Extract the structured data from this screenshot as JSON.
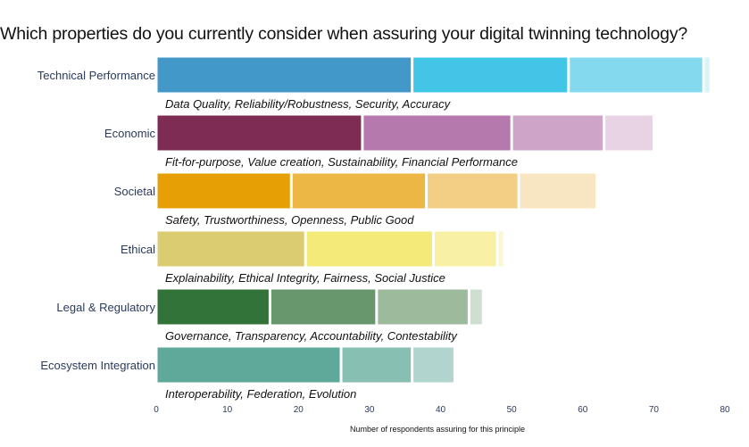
{
  "chart_data": {
    "type": "bar",
    "orientation": "horizontal",
    "stacked": true,
    "title": "Which properties do you currently consider when assuring your digital twinning technology?",
    "xlabel": "Number of respondents assuring for this principle",
    "ylabel": "",
    "xlim": [
      0,
      80
    ],
    "xticks": [
      0,
      10,
      20,
      30,
      40,
      50,
      60,
      70,
      80
    ],
    "grid": false,
    "categories": [
      {
        "label": "Technical Performance",
        "subtitle": "Data Quality, Reliability/Robustness, Security, Accuracy",
        "values": [
          36,
          22,
          19,
          1
        ],
        "colors": [
          "#4298c9",
          "#42c5e6",
          "#84d9ef",
          "#d9f3fa"
        ]
      },
      {
        "label": "Economic",
        "subtitle": "Fit-for-purpose, Value creation, Sustainability, Financial Performance",
        "values": [
          29,
          21,
          13,
          7
        ],
        "colors": [
          "#7f2c55",
          "#b679ae",
          "#cfa4c9",
          "#e8d3e5"
        ]
      },
      {
        "label": "Societal",
        "subtitle": "Safety, Trustworthiness, Openness, Public Good",
        "values": [
          19,
          19,
          13,
          11
        ],
        "colors": [
          "#e6a005",
          "#ecb744",
          "#f2cf85",
          "#f8e6c2"
        ]
      },
      {
        "label": "Ethical",
        "subtitle": "Explainability, Ethical Integrity, Fairness, Social Justice",
        "values": [
          21,
          18,
          9,
          1
        ],
        "colors": [
          "#dbcc72",
          "#f4ea78",
          "#f7f0a5",
          "#fbf7d2"
        ]
      },
      {
        "label": "Legal & Regulatory",
        "subtitle": "Governance, Transparency, Accountability, Contestability",
        "values": [
          16,
          15,
          13,
          2
        ],
        "colors": [
          "#32733a",
          "#67976b",
          "#9dbb9c",
          "#cfdecf"
        ]
      },
      {
        "label": "Ecosystem Integration",
        "subtitle": "Interoperability, Federation, Evolution",
        "values": [
          26,
          10,
          6
        ],
        "colors": [
          "#5ea99a",
          "#88bfb3",
          "#b1d5ce"
        ]
      }
    ]
  }
}
